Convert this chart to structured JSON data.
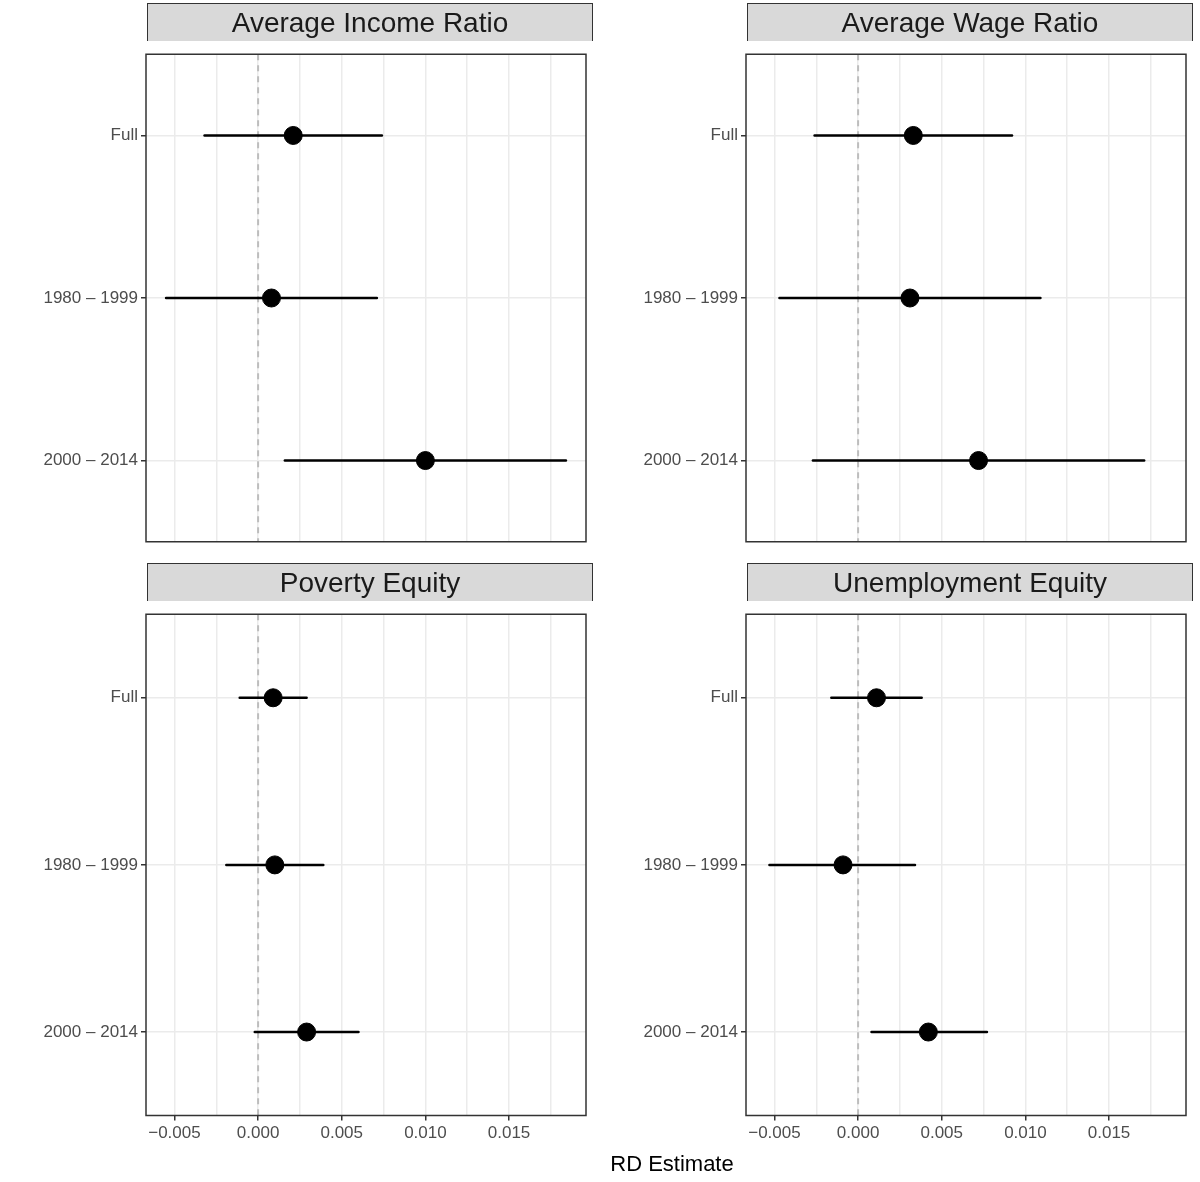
{
  "chart_data": [
    {
      "type": "scatter",
      "orientation": "horizontal",
      "title": "Average Income Ratio",
      "categories": [
        "Full",
        "1980 – 1999",
        "2000 – 2014"
      ],
      "values": [
        0.0021,
        0.0008,
        0.01
      ],
      "errors": [
        [
          -0.0032,
          0.0074
        ],
        [
          -0.0055,
          0.0071
        ],
        [
          0.0016,
          0.0184
        ]
      ],
      "color": "#000000",
      "marker": "circle",
      "xlim": [
        -0.0067,
        0.0196
      ],
      "xticks": [
        {
          "value": -0.005,
          "label": null
        },
        {
          "value": -0.0025,
          "label": null
        },
        {
          "value": 0,
          "label": null
        },
        {
          "value": 0.0025,
          "label": null
        },
        {
          "value": 0.005,
          "label": null
        },
        {
          "value": 0.0075,
          "label": null
        },
        {
          "value": 0.01,
          "label": null
        },
        {
          "value": 0.0125,
          "label": null
        },
        {
          "value": 0.015,
          "label": null
        },
        {
          "value": 0.0175,
          "label": null
        }
      ],
      "ref_lines": [
        {
          "axis": "x",
          "value": 0,
          "color": "#bdbdbd",
          "line_style": "dashed"
        }
      ],
      "grid": true,
      "tick_labels": "y"
    },
    {
      "type": "scatter",
      "orientation": "horizontal",
      "title": "Average Wage Ratio",
      "categories": [
        "Full",
        "1980 – 1999",
        "2000 – 2014"
      ],
      "values": [
        0.0033,
        0.0031,
        0.0072
      ],
      "errors": [
        [
          -0.0026,
          0.0092
        ],
        [
          -0.0047,
          0.0109
        ],
        [
          -0.0027,
          0.0171
        ]
      ],
      "color": "#000000",
      "marker": "circle",
      "xlim": [
        -0.0067,
        0.0196
      ],
      "xticks": [
        {
          "value": -0.005,
          "label": null
        },
        {
          "value": -0.0025,
          "label": null
        },
        {
          "value": 0,
          "label": null
        },
        {
          "value": 0.0025,
          "label": null
        },
        {
          "value": 0.005,
          "label": null
        },
        {
          "value": 0.0075,
          "label": null
        },
        {
          "value": 0.01,
          "label": null
        },
        {
          "value": 0.0125,
          "label": null
        },
        {
          "value": 0.015,
          "label": null
        },
        {
          "value": 0.0175,
          "label": null
        }
      ],
      "ref_lines": [
        {
          "axis": "x",
          "value": 0,
          "color": "#bdbdbd",
          "line_style": "dashed"
        }
      ],
      "grid": true,
      "tick_labels": "y"
    },
    {
      "type": "scatter",
      "orientation": "horizontal",
      "title": "Poverty Equity",
      "xlabel": "RD Estimate",
      "categories": [
        "Full",
        "1980 – 1999",
        "2000 – 2014"
      ],
      "values": [
        0.0009,
        0.001,
        0.0029
      ],
      "errors": [
        [
          -0.0011,
          0.0029
        ],
        [
          -0.0019,
          0.0039
        ],
        [
          -0.0002,
          0.006
        ]
      ],
      "color": "#000000",
      "marker": "circle",
      "xlim": [
        -0.0067,
        0.0196
      ],
      "xticks": [
        {
          "value": -0.005,
          "label": "−0.005"
        },
        {
          "value": -0.0025,
          "label": null
        },
        {
          "value": 0,
          "label": "0.000"
        },
        {
          "value": 0.0025,
          "label": null
        },
        {
          "value": 0.005,
          "label": "0.005"
        },
        {
          "value": 0.0075,
          "label": null
        },
        {
          "value": 0.01,
          "label": "0.010"
        },
        {
          "value": 0.0125,
          "label": null
        },
        {
          "value": 0.015,
          "label": "0.015"
        },
        {
          "value": 0.0175,
          "label": null
        }
      ],
      "ref_lines": [
        {
          "axis": "x",
          "value": 0,
          "color": "#bdbdbd",
          "line_style": "dashed"
        }
      ],
      "grid": true
    },
    {
      "type": "scatter",
      "orientation": "horizontal",
      "title": "Unemployment Equity",
      "categories": [
        "Full",
        "1980 – 1999",
        "2000 – 2014"
      ],
      "values": [
        0.0011,
        -0.0009,
        0.0042
      ],
      "errors": [
        [
          -0.0016,
          0.0038
        ],
        [
          -0.0053,
          0.0034
        ],
        [
          0.0008,
          0.0077
        ]
      ],
      "color": "#000000",
      "marker": "circle",
      "xlim": [
        -0.0067,
        0.0196
      ],
      "xticks": [
        {
          "value": -0.005,
          "label": "−0.005"
        },
        {
          "value": -0.0025,
          "label": null
        },
        {
          "value": 0,
          "label": "0.000"
        },
        {
          "value": 0.0025,
          "label": null
        },
        {
          "value": 0.005,
          "label": "0.005"
        },
        {
          "value": 0.0075,
          "label": null
        },
        {
          "value": 0.01,
          "label": "0.010"
        },
        {
          "value": 0.0125,
          "label": null
        },
        {
          "value": 0.015,
          "label": "0.015"
        },
        {
          "value": 0.0175,
          "label": null
        }
      ],
      "ref_lines": [
        {
          "axis": "x",
          "value": 0,
          "color": "#bdbdbd",
          "line_style": "dashed"
        }
      ],
      "grid": true
    }
  ]
}
